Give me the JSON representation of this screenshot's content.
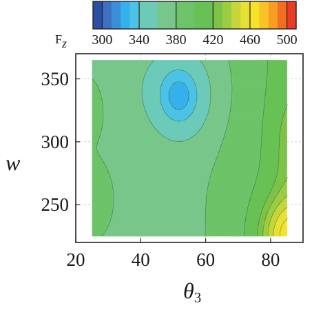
{
  "chart_data": {
    "type": "heatmap",
    "subtype": "filled-contour",
    "xlabel": {
      "symbol": "θ",
      "subscript": "3"
    },
    "ylabel": "w",
    "xlim": [
      20,
      90
    ],
    "ylim": [
      220,
      370
    ],
    "data_extent": {
      "x": [
        25,
        85
      ],
      "y": [
        225,
        365
      ]
    },
    "x_ticks": [
      20,
      40,
      60,
      80
    ],
    "y_ticks": [
      250,
      300,
      350
    ],
    "grid": true,
    "colorbar": {
      "title": {
        "main": "F",
        "subscript": "z"
      },
      "position": "top",
      "levels": [
        290,
        300,
        310,
        320,
        330,
        340,
        360,
        380,
        400,
        420,
        430,
        440,
        450,
        460,
        470,
        480,
        490,
        500,
        510
      ],
      "tick_labels": [
        "300",
        "340",
        "380",
        "420",
        "460",
        "500"
      ],
      "colors": [
        "#2b4ea2",
        "#3d6fc2",
        "#3b8fd8",
        "#36b0ea",
        "#4cc3e4",
        "#6ccab8",
        "#78c68a",
        "#6cc368",
        "#67c154",
        "#7cc348",
        "#9bcd42",
        "#c6d63a",
        "#e6e133",
        "#f7e22a",
        "#f9c327",
        "#f79d23",
        "#f26e22",
        "#ec3b25"
      ]
    },
    "notes": "Field value peaks near 500 at (85, 225) and dips to ~335 around (52, 335); values increase toward the right and toward the lower-left edge."
  }
}
